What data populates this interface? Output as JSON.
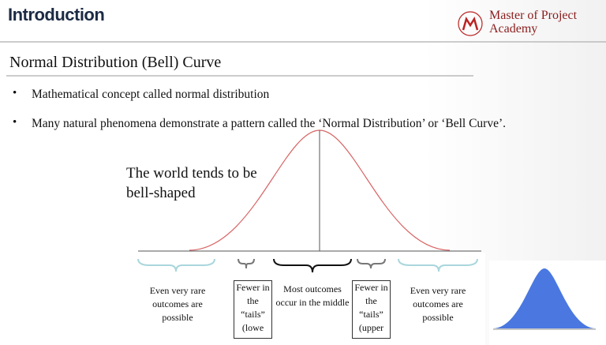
{
  "header": {
    "title": "Introduction",
    "logo_line1": "Master of Project",
    "logo_line2": "Academy"
  },
  "slide": {
    "heading": "Normal Distribution (Bell) Curve",
    "bullets": [
      "Mathematical concept called normal distribution",
      "Many natural phenomena demonstrate a pattern called the ‘Normal Distribution’ or ‘Bell Curve’."
    ],
    "callout": "The world tends to be bell-shaped",
    "regions": [
      "Even very rare outcomes are possible",
      "Fewer in the “tails” (lowe",
      "Most outcomes occur in the middle",
      "Fewer in the “tails” (upper",
      "Even very rare outcomes are possible"
    ]
  }
}
